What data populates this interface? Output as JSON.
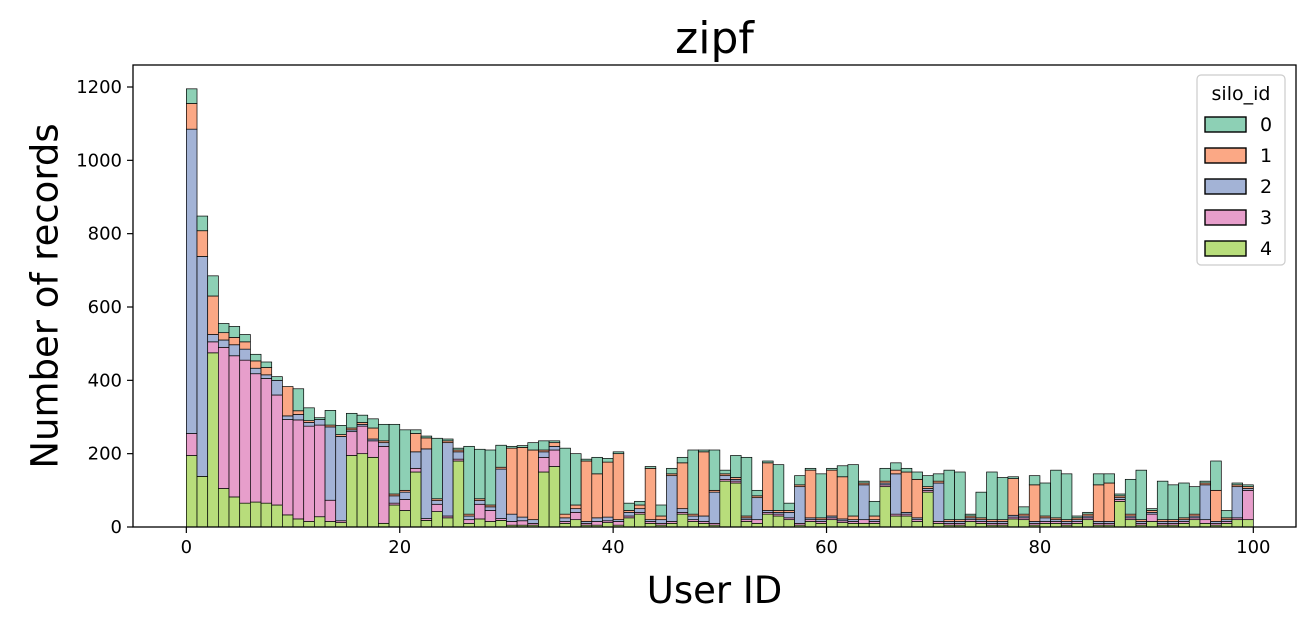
{
  "chart_data": {
    "type": "bar",
    "stacked": true,
    "title": "zipf",
    "xlabel": "User ID",
    "ylabel": "Number of records",
    "xlim": [
      -5,
      104
    ],
    "ylim": [
      0,
      1260
    ],
    "xticks": [
      0,
      20,
      40,
      60,
      80,
      100
    ],
    "yticks": [
      0,
      200,
      400,
      600,
      800,
      1000,
      1200
    ],
    "grid": false,
    "legend": {
      "title": "silo_id",
      "placement": "top-right"
    },
    "categories": [
      0,
      1,
      2,
      3,
      4,
      5,
      6,
      7,
      8,
      9,
      10,
      11,
      12,
      13,
      14,
      15,
      16,
      17,
      18,
      19,
      20,
      21,
      22,
      23,
      24,
      25,
      26,
      27,
      28,
      29,
      30,
      31,
      32,
      33,
      34,
      35,
      36,
      37,
      38,
      39,
      40,
      41,
      42,
      43,
      44,
      45,
      46,
      47,
      48,
      49,
      50,
      51,
      52,
      53,
      54,
      55,
      56,
      57,
      58,
      59,
      60,
      61,
      62,
      63,
      64,
      65,
      66,
      67,
      68,
      69,
      70,
      71,
      72,
      73,
      74,
      75,
      76,
      77,
      78,
      79,
      80,
      81,
      82,
      83,
      84,
      85,
      86,
      87,
      88,
      89,
      90,
      91,
      92,
      93,
      94,
      95,
      96,
      97,
      98,
      99
    ],
    "series": [
      {
        "name": "4",
        "color": "#b8dd7b",
        "values": [
          195,
          138,
          475,
          105,
          82,
          65,
          68,
          65,
          60,
          33,
          22,
          15,
          28,
          15,
          12,
          195,
          200,
          190,
          10,
          60,
          45,
          150,
          18,
          42,
          25,
          180,
          10,
          22,
          15,
          18,
          5,
          5,
          5,
          150,
          165,
          10,
          20,
          5,
          5,
          12,
          5,
          25,
          35,
          10,
          5,
          10,
          35,
          15,
          10,
          5,
          125,
          120,
          15,
          10,
          35,
          30,
          20,
          5,
          15,
          10,
          20,
          12,
          10,
          10,
          10,
          110,
          30,
          30,
          15,
          95,
          10,
          5,
          5,
          15,
          10,
          5,
          5,
          22,
          20,
          5,
          10,
          10,
          5,
          10,
          20,
          5,
          5,
          70,
          20,
          5,
          15,
          5,
          5,
          10,
          20,
          10,
          5,
          10,
          20,
          20
        ]
      },
      {
        "name": "3",
        "color": "#e79ecb",
        "values": [
          60,
          0,
          30,
          385,
          385,
          390,
          350,
          340,
          300,
          260,
          270,
          260,
          250,
          58,
          5,
          65,
          75,
          45,
          210,
          5,
          30,
          10,
          5,
          20,
          5,
          5,
          10,
          40,
          30,
          5,
          10,
          12,
          5,
          40,
          45,
          5,
          20,
          5,
          10,
          5,
          10,
          5,
          5,
          5,
          5,
          5,
          5,
          5,
          5,
          5,
          5,
          5,
          5,
          10,
          5,
          5,
          5,
          5,
          5,
          5,
          5,
          5,
          5,
          10,
          5,
          5,
          5,
          5,
          5,
          5,
          5,
          5,
          5,
          5,
          5,
          5,
          5,
          5,
          5,
          5,
          5,
          5,
          5,
          5,
          5,
          5,
          5,
          5,
          5,
          5,
          20,
          5,
          5,
          5,
          5,
          10,
          5,
          5,
          5,
          80
        ]
      },
      {
        "name": "2",
        "color": "#a3b3d6",
        "values": [
          830,
          600,
          20,
          20,
          30,
          30,
          15,
          10,
          40,
          10,
          15,
          10,
          15,
          200,
          230,
          5,
          5,
          5,
          10,
          20,
          20,
          45,
          190,
          10,
          200,
          20,
          10,
          10,
          10,
          135,
          20,
          10,
          10,
          15,
          10,
          10,
          10,
          5,
          10,
          10,
          5,
          10,
          10,
          5,
          10,
          125,
          10,
          10,
          15,
          85,
          10,
          5,
          5,
          60,
          5,
          5,
          15,
          100,
          5,
          5,
          5,
          5,
          5,
          95,
          5,
          5,
          110,
          5,
          5,
          5,
          105,
          5,
          5,
          5,
          5,
          5,
          5,
          5,
          5,
          5,
          10,
          5,
          5,
          5,
          5,
          5,
          5,
          5,
          5,
          5,
          5,
          5,
          5,
          5,
          5,
          95,
          5,
          5,
          85,
          5
        ]
      },
      {
        "name": "1",
        "color": "#fba885",
        "values": [
          70,
          70,
          105,
          20,
          20,
          20,
          20,
          20,
          0,
          80,
          10,
          5,
          0,
          5,
          5,
          5,
          5,
          30,
          5,
          5,
          5,
          50,
          30,
          5,
          5,
          5,
          5,
          5,
          5,
          5,
          180,
          190,
          190,
          5,
          10,
          10,
          10,
          165,
          120,
          150,
          180,
          5,
          10,
          140,
          10,
          5,
          125,
          5,
          175,
          5,
          5,
          5,
          5,
          5,
          130,
          5,
          5,
          5,
          130,
          5,
          125,
          115,
          10,
          5,
          10,
          5,
          10,
          110,
          105,
          5,
          5,
          5,
          5,
          5,
          5,
          5,
          5,
          100,
          5,
          100,
          5,
          5,
          5,
          5,
          5,
          100,
          105,
          5,
          5,
          5,
          5,
          5,
          5,
          5,
          5,
          5,
          85,
          5,
          5,
          5
        ]
      },
      {
        "name": "0",
        "color": "#8dd0b5",
        "values": [
          40,
          40,
          55,
          25,
          30,
          20,
          18,
          15,
          10,
          0,
          60,
          35,
          5,
          40,
          25,
          40,
          20,
          25,
          45,
          190,
          165,
          10,
          5,
          165,
          5,
          5,
          185,
          135,
          150,
          60,
          5,
          5,
          20,
          25,
          5,
          180,
          140,
          5,
          45,
          10,
          5,
          20,
          10,
          5,
          30,
          15,
          15,
          175,
          5,
          110,
          10,
          60,
          160,
          15,
          5,
          125,
          20,
          25,
          5,
          120,
          5,
          30,
          140,
          5,
          40,
          35,
          20,
          10,
          20,
          30,
          20,
          135,
          130,
          5,
          70,
          130,
          115,
          5,
          20,
          25,
          90,
          130,
          125,
          5,
          5,
          30,
          25,
          5,
          95,
          135,
          5,
          105,
          95,
          95,
          75,
          5,
          80,
          20,
          5,
          5
        ]
      }
    ]
  }
}
